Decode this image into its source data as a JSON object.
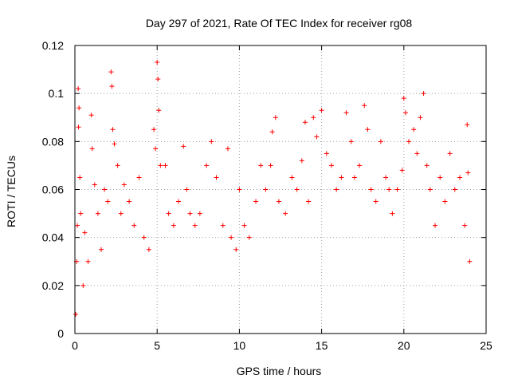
{
  "chart_data": {
    "type": "scatter",
    "title": "Day 297 of 2021, Rate Of TEC Index for receiver rg08",
    "xlabel": "GPS time / hours",
    "ylabel": "ROTI / TECUs",
    "xlim": [
      0,
      25
    ],
    "ylim": [
      0,
      0.12
    ],
    "x_ticks": [
      0,
      5,
      10,
      15,
      20,
      25
    ],
    "x_tick_labels": [
      "0",
      "5",
      "10",
      "15",
      "20",
      "25"
    ],
    "y_ticks": [
      0,
      0.02,
      0.04,
      0.06,
      0.08,
      0.1,
      0.12
    ],
    "y_tick_labels": [
      "0",
      "0.02",
      "0.04",
      "0.06",
      "0.08",
      "0.1",
      "0.12"
    ],
    "grid": true,
    "marker": "+",
    "color": "#ff0000",
    "series": [
      {
        "name": "",
        "points": [
          [
            0.05,
            0.008
          ],
          [
            0.1,
            0.03
          ],
          [
            0.15,
            0.045
          ],
          [
            0.2,
            0.102
          ],
          [
            0.25,
            0.094
          ],
          [
            0.22,
            0.086
          ],
          [
            0.3,
            0.065
          ],
          [
            0.35,
            0.05
          ],
          [
            0.5,
            0.02
          ],
          [
            0.6,
            0.042
          ],
          [
            0.8,
            0.03
          ],
          [
            1.0,
            0.091
          ],
          [
            1.05,
            0.077
          ],
          [
            1.2,
            0.062
          ],
          [
            1.4,
            0.05
          ],
          [
            1.6,
            0.035
          ],
          [
            1.8,
            0.06
          ],
          [
            2.0,
            0.055
          ],
          [
            2.2,
            0.109
          ],
          [
            2.25,
            0.103
          ],
          [
            2.3,
            0.085
          ],
          [
            2.4,
            0.079
          ],
          [
            2.6,
            0.07
          ],
          [
            2.8,
            0.05
          ],
          [
            3.0,
            0.062
          ],
          [
            3.3,
            0.055
          ],
          [
            3.6,
            0.045
          ],
          [
            3.9,
            0.065
          ],
          [
            4.2,
            0.04
          ],
          [
            4.5,
            0.035
          ],
          [
            4.8,
            0.085
          ],
          [
            4.9,
            0.077
          ],
          [
            5.0,
            0.113
          ],
          [
            5.05,
            0.106
          ],
          [
            5.1,
            0.093
          ],
          [
            5.2,
            0.07
          ],
          [
            5.5,
            0.07
          ],
          [
            5.7,
            0.05
          ],
          [
            6.0,
            0.045
          ],
          [
            6.3,
            0.055
          ],
          [
            6.6,
            0.078
          ],
          [
            6.8,
            0.06
          ],
          [
            7.0,
            0.05
          ],
          [
            7.3,
            0.045
          ],
          [
            7.6,
            0.05
          ],
          [
            8.0,
            0.07
          ],
          [
            8.3,
            0.08
          ],
          [
            8.6,
            0.065
          ],
          [
            9.0,
            0.045
          ],
          [
            9.3,
            0.077
          ],
          [
            9.5,
            0.04
          ],
          [
            9.8,
            0.035
          ],
          [
            10.0,
            0.06
          ],
          [
            10.3,
            0.045
          ],
          [
            10.6,
            0.04
          ],
          [
            11.0,
            0.055
          ],
          [
            11.3,
            0.07
          ],
          [
            11.6,
            0.06
          ],
          [
            11.9,
            0.07
          ],
          [
            12.0,
            0.084
          ],
          [
            12.2,
            0.09
          ],
          [
            12.4,
            0.055
          ],
          [
            12.8,
            0.05
          ],
          [
            13.2,
            0.065
          ],
          [
            13.5,
            0.06
          ],
          [
            13.8,
            0.072
          ],
          [
            14.0,
            0.088
          ],
          [
            14.2,
            0.055
          ],
          [
            14.5,
            0.09
          ],
          [
            14.7,
            0.082
          ],
          [
            15.0,
            0.093
          ],
          [
            15.3,
            0.075
          ],
          [
            15.6,
            0.07
          ],
          [
            15.9,
            0.06
          ],
          [
            16.2,
            0.065
          ],
          [
            16.5,
            0.092
          ],
          [
            16.8,
            0.08
          ],
          [
            17.0,
            0.065
          ],
          [
            17.3,
            0.07
          ],
          [
            17.6,
            0.095
          ],
          [
            17.8,
            0.085
          ],
          [
            18.0,
            0.06
          ],
          [
            18.3,
            0.055
          ],
          [
            18.6,
            0.08
          ],
          [
            18.9,
            0.065
          ],
          [
            19.1,
            0.06
          ],
          [
            19.3,
            0.05
          ],
          [
            19.6,
            0.06
          ],
          [
            19.9,
            0.068
          ],
          [
            20.0,
            0.098
          ],
          [
            20.1,
            0.092
          ],
          [
            20.3,
            0.08
          ],
          [
            20.6,
            0.085
          ],
          [
            20.8,
            0.075
          ],
          [
            21.0,
            0.09
          ],
          [
            21.2,
            0.1
          ],
          [
            21.4,
            0.07
          ],
          [
            21.6,
            0.06
          ],
          [
            21.9,
            0.045
          ],
          [
            22.2,
            0.065
          ],
          [
            22.5,
            0.055
          ],
          [
            22.8,
            0.075
          ],
          [
            23.1,
            0.06
          ],
          [
            23.4,
            0.065
          ],
          [
            23.7,
            0.045
          ],
          [
            23.85,
            0.087
          ],
          [
            23.9,
            0.067
          ],
          [
            24.0,
            0.03
          ]
        ]
      }
    ]
  }
}
